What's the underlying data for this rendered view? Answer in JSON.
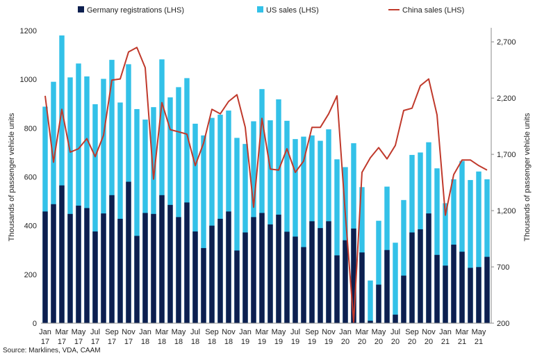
{
  "chart_data": {
    "type": "bar",
    "legend_position": "top",
    "grid": false,
    "legend": [
      {
        "key": "germany",
        "label": "Germany registrations (LHS)",
        "color": "#0d1f4f",
        "kind": "bar"
      },
      {
        "key": "us",
        "label": "US sales (LHS)",
        "color": "#33c1e8",
        "kind": "bar"
      },
      {
        "key": "china",
        "label": "China sales (LHS)",
        "color": "#c0392b",
        "kind": "line"
      }
    ],
    "ylabel": "Thousands of passenger vehicle units",
    "y2label": "Thousands of passenger vehicle units",
    "ylim": [
      0,
      1200
    ],
    "y2lim": [
      200,
      2800
    ],
    "yticks": [
      "0",
      "200",
      "400",
      "600",
      "800",
      "1000",
      "1200"
    ],
    "y2ticks": [
      "200",
      "700",
      "1,200",
      "1,700",
      "2,200",
      "2,700"
    ],
    "x_tick_labels": [
      {
        "month": "Jan",
        "year": "17"
      },
      {
        "month": "Mar",
        "year": "17"
      },
      {
        "month": "May",
        "year": "17"
      },
      {
        "month": "Jul",
        "year": "17"
      },
      {
        "month": "Sep",
        "year": "17"
      },
      {
        "month": "Nov",
        "year": "17"
      },
      {
        "month": "Jan",
        "year": "18"
      },
      {
        "month": "Mar",
        "year": "18"
      },
      {
        "month": "May",
        "year": "18"
      },
      {
        "month": "Jul",
        "year": "18"
      },
      {
        "month": "Sep",
        "year": "18"
      },
      {
        "month": "Nov",
        "year": "18"
      },
      {
        "month": "Jan",
        "year": "19"
      },
      {
        "month": "Mar",
        "year": "19"
      },
      {
        "month": "May",
        "year": "19"
      },
      {
        "month": "Jul",
        "year": "19"
      },
      {
        "month": "Sep",
        "year": "19"
      },
      {
        "month": "Nov",
        "year": "19"
      },
      {
        "month": "Jan",
        "year": "20"
      },
      {
        "month": "Mar",
        "year": "20"
      },
      {
        "month": "May",
        "year": "20"
      },
      {
        "month": "Jul",
        "year": "20"
      },
      {
        "month": "Sep",
        "year": "20"
      },
      {
        "month": "Nov",
        "year": "20"
      },
      {
        "month": "Jan",
        "year": "21"
      },
      {
        "month": "Mar",
        "year": "21"
      },
      {
        "month": "May",
        "year": "21"
      }
    ],
    "categories": [
      "Jan 17",
      "Feb 17",
      "Mar 17",
      "Apr 17",
      "May 17",
      "Jun 17",
      "Jul 17",
      "Aug 17",
      "Sep 17",
      "Oct 17",
      "Nov 17",
      "Dec 17",
      "Jan 18",
      "Feb 18",
      "Mar 18",
      "Apr 18",
      "May 18",
      "Jun 18",
      "Jul 18",
      "Aug 18",
      "Sep 18",
      "Oct 18",
      "Nov 18",
      "Dec 18",
      "Jan 19",
      "Feb 19",
      "Mar 19",
      "Apr 19",
      "May 19",
      "Jun 19",
      "Jul 19",
      "Aug 19",
      "Sep 19",
      "Oct 19",
      "Nov 19",
      "Dec 19",
      "Jan 20",
      "Feb 20",
      "Mar 20",
      "Apr 20",
      "May 20",
      "Jun 20",
      "Jul 20",
      "Aug 20",
      "Sep 20",
      "Oct 20",
      "Nov 20",
      "Dec 20",
      "Jan 21",
      "Feb 21",
      "Mar 21",
      "Apr 21",
      "May 21",
      "Jun 21"
    ],
    "series": [
      {
        "name": "Germany registrations (LHS)",
        "axis": "left",
        "kind": "bar",
        "color": "#0d1f4f",
        "values": [
          458,
          488,
          565,
          448,
          482,
          472,
          376,
          450,
          525,
          428,
          580,
          358,
          452,
          448,
          525,
          485,
          435,
          495,
          376,
          308,
          400,
          428,
          458,
          298,
          372,
          435,
          452,
          405,
          445,
          375,
          355,
          312,
          418,
          390,
          418,
          278,
          340,
          388,
          290,
          10,
          158,
          300,
          35,
          195,
          372,
          385,
          450,
          280,
          236,
          322,
          293,
          227,
          230,
          272
        ]
      },
      {
        "name": "US sales (LHS)",
        "axis": "left",
        "kind": "bar",
        "color": "#33c1e8",
        "values": [
          888,
          990,
          1180,
          1008,
          1065,
          1012,
          898,
          1002,
          1080,
          905,
          1062,
          878,
          835,
          886,
          1082,
          926,
          968,
          1005,
          818,
          770,
          842,
          855,
          872,
          760,
          735,
          828,
          960,
          832,
          918,
          830,
          755,
          765,
          770,
          748,
          795,
          672,
          640,
          738,
          558,
          175,
          420,
          560,
          330,
          505,
          690,
          700,
          742,
          635,
          492,
          590,
          665,
          587,
          622,
          590
        ]
      },
      {
        "name": "China sales (LHS)",
        "axis": "right",
        "kind": "line",
        "color": "#c0392b",
        "values": [
          2220,
          1630,
          2100,
          1720,
          1750,
          1840,
          1680,
          1870,
          2360,
          2370,
          2610,
          2650,
          2470,
          1480,
          2160,
          1920,
          1900,
          1880,
          1600,
          1800,
          2100,
          2060,
          2170,
          2230,
          1940,
          1230,
          2020,
          1570,
          1560,
          1750,
          1540,
          1640,
          1940,
          1940,
          2060,
          2220,
          1170,
          210,
          1540,
          1670,
          1760,
          1660,
          1780,
          2090,
          2110,
          2310,
          2370,
          2050,
          1160,
          1520,
          1650,
          1650,
          1600,
          1560
        ]
      }
    ],
    "source": "Source: Marklines, VDA, CAAM"
  }
}
